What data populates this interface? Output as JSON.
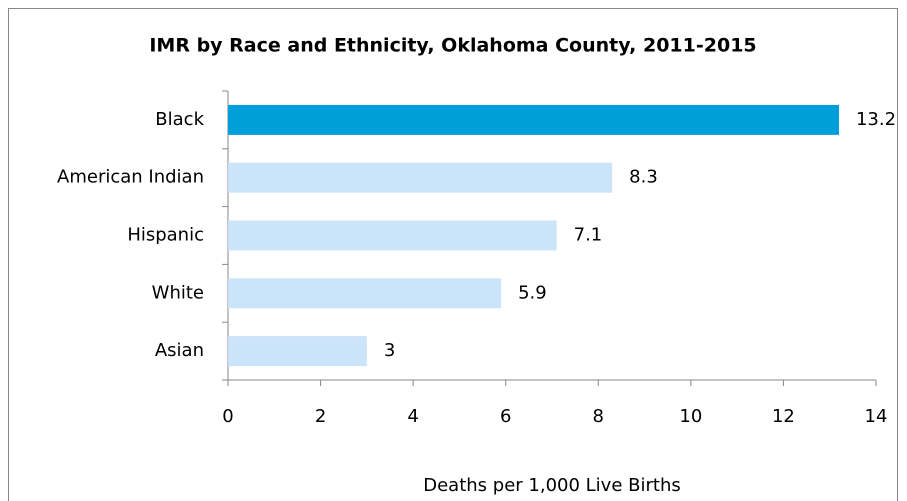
{
  "chart_data": {
    "type": "barh",
    "title": "IMR by Race and Ethnicity, Oklahoma County, 2011-2015",
    "xlabel": "Deaths per 1,000 Live Births",
    "categories": [
      "Black",
      "American Indian",
      "Hispanic",
      "White",
      "Asian"
    ],
    "values": [
      13.2,
      8.3,
      7.1,
      5.9,
      3
    ],
    "colors": [
      "#009fda",
      "#cce4fa",
      "#cce4fa",
      "#cce4fa",
      "#cce4fa"
    ],
    "xlim": [
      0,
      14
    ],
    "xticks": [
      0,
      2,
      4,
      6,
      8,
      10,
      12,
      14
    ],
    "grid": false
  }
}
